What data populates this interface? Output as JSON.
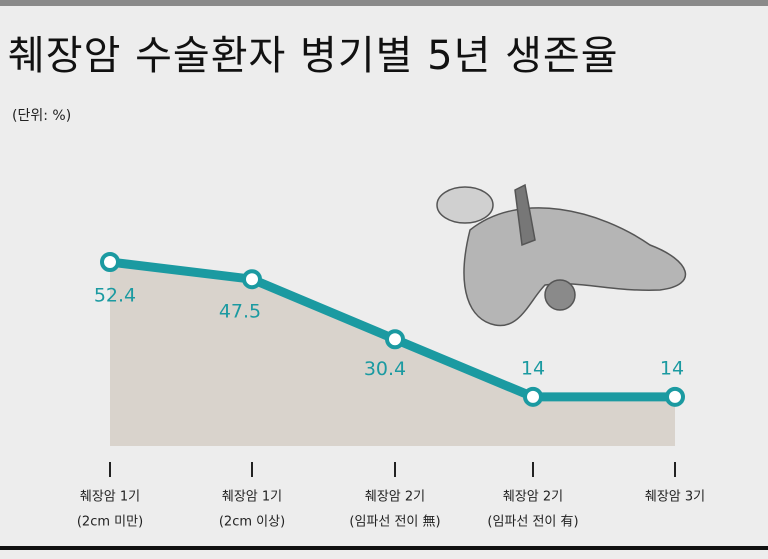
{
  "chart_data": {
    "type": "line",
    "title": "췌장암 수술환자 병기별 5년 생존율",
    "unit": "(단위: %)",
    "categories": [
      [
        "췌장암 1기",
        "(2cm 미만)"
      ],
      [
        "췌장암 1기",
        "(2cm 이상)"
      ],
      [
        "췌장암 2기",
        "(임파선 전이 無)"
      ],
      [
        "췌장암 2기",
        "(임파선 전이 有)"
      ],
      [
        "췌장암 3기"
      ]
    ],
    "values": [
      52.4,
      47.5,
      30.4,
      14,
      14
    ],
    "color": "#1b9aa1",
    "area_color": "#d9d3cc"
  }
}
